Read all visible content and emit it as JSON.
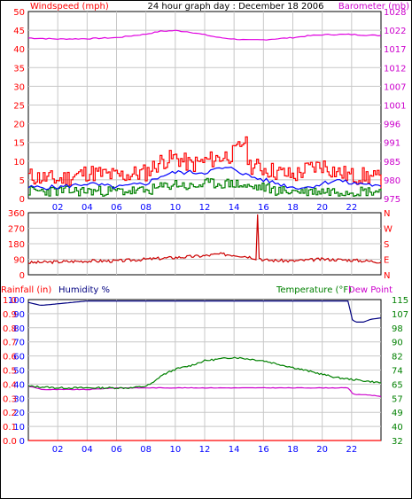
{
  "colors": {
    "wind": "#ff0000",
    "avg_wind": "#0000ff",
    "gust": "#008000",
    "barometer": "#e000e0",
    "wind_dir": "#cc0000",
    "rain": "#ff0000",
    "humidity": "#000080",
    "temperature": "#008000",
    "dew_point": "#cc00cc",
    "axis_left": "#ff0000",
    "axis_right": "#cc00cc",
    "grid": "#c8c8c8"
  },
  "chart_data": [
    {
      "type": "line",
      "title": "24 hour graph day : December 18 2006",
      "left_axis_label": "Windspeed (mph)",
      "right_axis_label": "Barometer (mb)",
      "x_ticks": [
        "02",
        "04",
        "06",
        "08",
        "10",
        "12",
        "14",
        "16",
        "18",
        "20",
        "22"
      ],
      "left_ticks": [
        "0",
        "5",
        "10",
        "15",
        "20",
        "25",
        "30",
        "35",
        "40",
        "45",
        "50"
      ],
      "right_ticks": [
        "975",
        "980",
        "985",
        "991",
        "996",
        "1001",
        "1007",
        "1012",
        "1017",
        "1022",
        "1028"
      ],
      "x_range": [
        0,
        24
      ],
      "left_range": [
        0,
        50
      ],
      "right_range": [
        975,
        1028
      ],
      "series": [
        {
          "key": "barometer",
          "x": [
            0,
            2,
            4,
            6,
            8,
            9,
            10,
            11,
            12,
            13,
            14,
            15,
            16,
            17,
            18,
            19,
            20,
            21,
            22,
            23,
            24
          ],
          "values": [
            1020.5,
            1020.2,
            1020.3,
            1020.6,
            1021.6,
            1022.4,
            1022.6,
            1022.2,
            1021.4,
            1020.6,
            1020.2,
            1019.9,
            1020.0,
            1020.3,
            1020.6,
            1021.1,
            1021.4,
            1021.5,
            1021.5,
            1021.3,
            1021.2
          ]
        },
        {
          "key": "wind",
          "x": [
            0,
            2,
            4,
            6,
            8,
            9,
            10,
            11,
            12,
            13,
            14,
            14.7,
            15,
            16,
            17,
            18,
            19,
            20,
            21,
            22,
            23,
            24
          ],
          "values": [
            6,
            5,
            7,
            6,
            7,
            10,
            11,
            9,
            10,
            11,
            12,
            16,
            9,
            8,
            7,
            6,
            8,
            9,
            7,
            6,
            6,
            5
          ]
        },
        {
          "key": "avg_wind",
          "x": [
            0,
            2,
            4,
            6,
            8,
            9,
            10,
            11,
            12,
            13,
            14,
            15,
            16,
            17,
            18,
            19,
            20,
            21,
            22,
            23,
            24
          ],
          "values": [
            3,
            3,
            4,
            3,
            4,
            6,
            7,
            7,
            7,
            8,
            8,
            6,
            5,
            4,
            3,
            3,
            4,
            5,
            4,
            4,
            3
          ]
        },
        {
          "key": "gust",
          "x": [
            0,
            2,
            4,
            6,
            8,
            9,
            10,
            11,
            12,
            13,
            14,
            15,
            16,
            17,
            18,
            19,
            20,
            21,
            22,
            23,
            24
          ],
          "values": [
            2,
            2,
            2,
            2,
            2,
            3,
            4,
            3,
            4,
            4,
            4,
            3,
            3,
            2,
            2,
            2,
            2,
            2,
            2,
            2,
            2
          ]
        }
      ]
    },
    {
      "type": "line",
      "left_ticks": [
        "0",
        "90",
        "180",
        "270",
        "360"
      ],
      "right_ticks": [
        "N",
        "E",
        "S",
        "W",
        "N"
      ],
      "x_ticks": [
        "02",
        "04",
        "06",
        "08",
        "10",
        "12",
        "14",
        "16",
        "18",
        "20",
        "22"
      ],
      "x_range": [
        0,
        24
      ],
      "left_range": [
        0,
        360
      ],
      "series": [
        {
          "key": "wind_dir",
          "x": [
            0,
            2,
            4,
            6,
            8,
            10,
            12,
            13,
            14,
            15,
            15.5,
            15.6,
            15.7,
            16,
            18,
            20,
            22,
            24
          ],
          "values": [
            70,
            75,
            80,
            80,
            90,
            100,
            110,
            120,
            115,
            105,
            95,
            350,
            100,
            85,
            80,
            90,
            85,
            75
          ]
        }
      ]
    },
    {
      "type": "line",
      "left_axis_label_1": "Rainfall (in)",
      "left_axis_label_2": "Humidity %",
      "right_axis_label_1": "Temperature (°F)",
      "right_axis_label_2": "Dew Point",
      "rain_ticks": [
        "0.0",
        "0.1",
        "0.2",
        "0.3",
        "0.4",
        "0.5",
        "0.6",
        "0.7",
        "0.8",
        "0.9",
        "1.0"
      ],
      "humidity_ticks": [
        "0",
        "10",
        "20",
        "30",
        "40",
        "50",
        "60",
        "70",
        "80",
        "90",
        "100"
      ],
      "temp_ticks": [
        "32",
        "40",
        "49",
        "57",
        "65",
        "74",
        "82",
        "90",
        "98",
        "107",
        "115"
      ],
      "x_ticks": [
        "02",
        "04",
        "06",
        "08",
        "10",
        "12",
        "14",
        "16",
        "18",
        "20",
        "22"
      ],
      "x_range": [
        0,
        24
      ],
      "humidity_range": [
        0,
        100
      ],
      "temp_range": [
        32,
        115
      ],
      "series": [
        {
          "key": "humidity",
          "x": [
            0,
            0.8,
            1.0,
            2,
            3,
            4,
            5,
            10,
            15,
            20,
            21.8,
            22,
            22.3,
            22.8,
            23.3,
            24
          ],
          "values": [
            98,
            96,
            96,
            97,
            98,
            99,
            99,
            99,
            99,
            99,
            99,
            86,
            84,
            84,
            86,
            87
          ]
        },
        {
          "key": "temperature",
          "x": [
            0,
            2,
            4,
            6,
            7,
            8,
            8.5,
            9,
            10,
            11,
            12,
            13,
            14,
            15,
            16,
            17,
            18,
            19,
            20,
            21,
            22,
            23,
            24
          ],
          "values": [
            64,
            63,
            63,
            63,
            63,
            64,
            66,
            70,
            74,
            76,
            79,
            80,
            81,
            80,
            79,
            77,
            75,
            73,
            71,
            69,
            68,
            67,
            66
          ]
        },
        {
          "key": "dew_point",
          "x": [
            0,
            1,
            2,
            4,
            6,
            8,
            10,
            12,
            14,
            16,
            18,
            20,
            21.8,
            22,
            22.3,
            23,
            24
          ],
          "values": [
            64,
            62,
            62,
            62,
            63,
            63,
            63,
            63,
            63,
            63,
            63,
            63,
            63,
            60,
            59,
            59,
            58
          ]
        },
        {
          "key": "rain",
          "x": [
            0,
            24
          ],
          "values": [
            0,
            0
          ]
        }
      ]
    }
  ]
}
